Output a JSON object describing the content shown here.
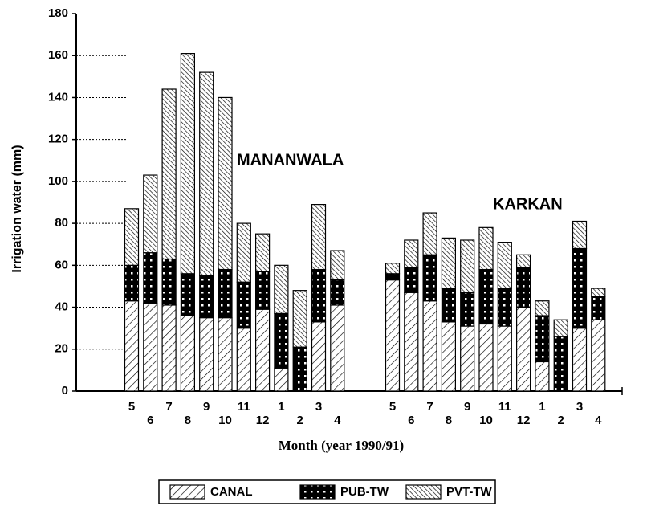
{
  "chart_data": {
    "type": "stacked_bar",
    "ylabel": "Irrigation water (mm)",
    "xlabel": "Month (year 1990/91)",
    "annotations": [
      "MANANWALA",
      "KARKAN"
    ],
    "categories": [
      "5",
      "6",
      "7",
      "8",
      "9",
      "10",
      "11",
      "12",
      "1",
      "2",
      "3",
      "4",
      "5",
      "6",
      "7",
      "8",
      "9",
      "10",
      "11",
      "12",
      "1",
      "2",
      "3",
      "4"
    ],
    "series": [
      {
        "name": "CANAL",
        "color": "#000000",
        "values": [
          43,
          42,
          41,
          36,
          35,
          35,
          30,
          39,
          11,
          0,
          33,
          41,
          53,
          47,
          43,
          33,
          31,
          32,
          31,
          40,
          14,
          0,
          30,
          34
        ]
      },
      {
        "name": "PUB-TW",
        "color": "#000000",
        "values": [
          17,
          24,
          22,
          20,
          20,
          23,
          22,
          18,
          26,
          21,
          25,
          12,
          3,
          12,
          22,
          16,
          16,
          26,
          18,
          19,
          22,
          26,
          38,
          11
        ]
      },
      {
        "name": "PVT-TW",
        "color": "#000000",
        "values": [
          27,
          37,
          81,
          105,
          97,
          82,
          28,
          18,
          23,
          27,
          31,
          14,
          5,
          13,
          20,
          24,
          25,
          20,
          22,
          6,
          7,
          8,
          13,
          4
        ]
      }
    ],
    "ylim": [
      0,
      180
    ],
    "yticks": [
      0,
      20,
      40,
      60,
      80,
      100,
      120,
      140,
      160,
      180
    ],
    "grid": true
  }
}
